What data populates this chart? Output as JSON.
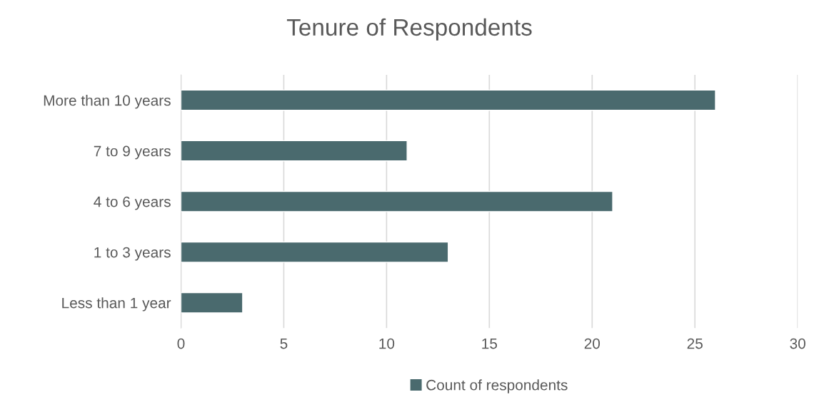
{
  "chart_data": {
    "type": "bar",
    "orientation": "horizontal",
    "title": "Tenure of Respondents",
    "categories": [
      "More than 10 years",
      "7 to 9 years",
      "4 to 6 years",
      "1 to 3 years",
      "Less than 1 year"
    ],
    "series": [
      {
        "name": "Count of respondents",
        "color": "#4a6a6e",
        "values": [
          26,
          11,
          21,
          13,
          3
        ]
      }
    ],
    "xlim": [
      0,
      30
    ],
    "xticks": [
      0,
      5,
      10,
      15,
      20,
      25,
      30
    ],
    "grid": "x",
    "legend": "bottom"
  }
}
